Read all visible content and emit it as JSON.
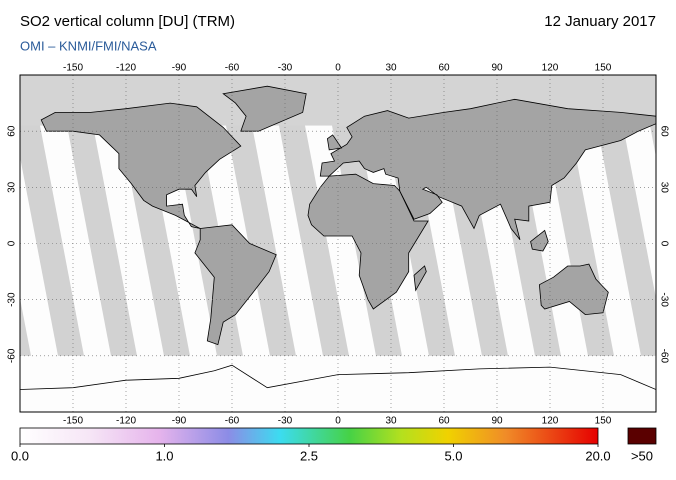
{
  "header": {
    "title": "SO2 vertical column [DU] (TRM)",
    "date": "12 January 2017",
    "subtitle": "OMI  –  KNMI/FMI/NASA"
  },
  "map": {
    "lon_ticks": [
      -150,
      -120,
      -90,
      -60,
      -30,
      0,
      30,
      60,
      90,
      120,
      150
    ],
    "lat_ticks": [
      60,
      30,
      0,
      -30,
      -60
    ]
  },
  "colorbar": {
    "labels": [
      {
        "value": 0,
        "label": "0.0"
      },
      {
        "value": 1,
        "label": "1.0"
      },
      2.5,
      {
        "value": 5,
        "label": "5.0"
      },
      {
        "value": 20,
        "label": "20.0"
      }
    ],
    "over_label": ">50"
  }
}
